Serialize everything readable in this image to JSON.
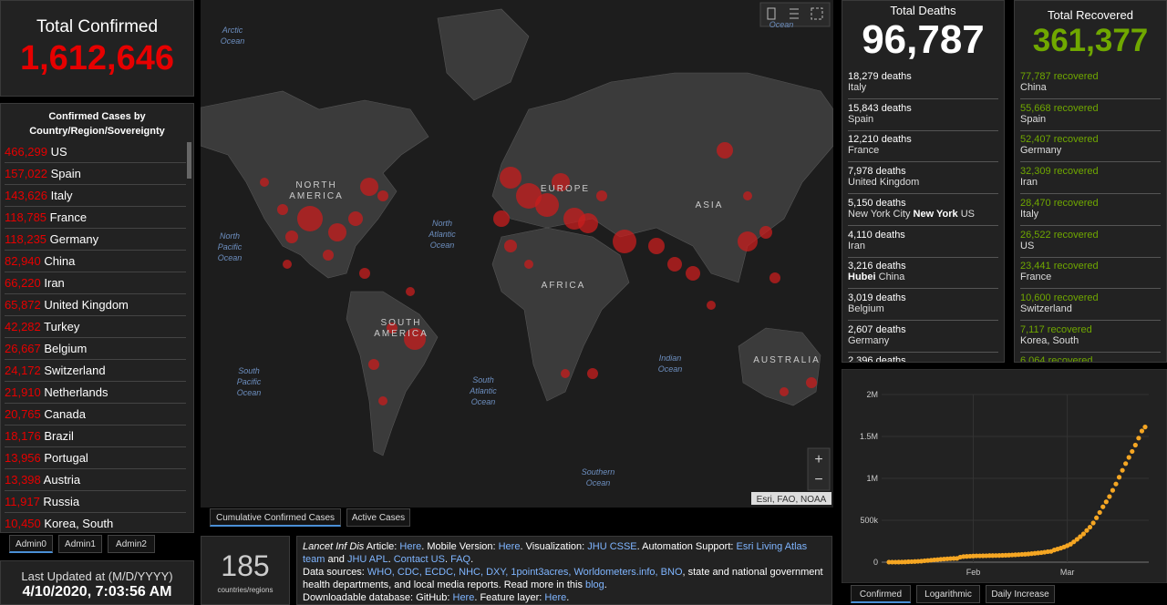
{
  "confirmed": {
    "title": "Total Confirmed",
    "total": "1,612,646"
  },
  "country_list": {
    "title": "Confirmed Cases by Country/Region/Sovereignty",
    "rows": [
      {
        "count": "466,299",
        "place": "US"
      },
      {
        "count": "157,022",
        "place": "Spain"
      },
      {
        "count": "143,626",
        "place": "Italy"
      },
      {
        "count": "118,785",
        "place": "France"
      },
      {
        "count": "118,235",
        "place": "Germany"
      },
      {
        "count": "82,940",
        "place": "China"
      },
      {
        "count": "66,220",
        "place": "Iran"
      },
      {
        "count": "65,872",
        "place": "United Kingdom"
      },
      {
        "count": "42,282",
        "place": "Turkey"
      },
      {
        "count": "26,667",
        "place": "Belgium"
      },
      {
        "count": "24,172",
        "place": "Switzerland"
      },
      {
        "count": "21,910",
        "place": "Netherlands"
      },
      {
        "count": "20,765",
        "place": "Canada"
      },
      {
        "count": "18,176",
        "place": "Brazil"
      },
      {
        "count": "13,956",
        "place": "Portugal"
      },
      {
        "count": "13,398",
        "place": "Austria"
      },
      {
        "count": "11,917",
        "place": "Russia"
      },
      {
        "count": "10,450",
        "place": "Korea, South"
      }
    ],
    "tabs": [
      "Admin0",
      "Admin1",
      "Admin2"
    ]
  },
  "updated": {
    "label": "Last Updated at (M/D/YYYY)",
    "value": "4/10/2020, 7:03:56 AM"
  },
  "map": {
    "labels": [
      [
        "Arctic",
        "Ocean"
      ],
      [
        "Ocean"
      ],
      [
        "NORTH",
        "AMERICA"
      ],
      [
        "North",
        "Pacific",
        "Ocean"
      ],
      [
        "North",
        "Atlantic",
        "Ocean"
      ],
      [
        "EUROPE"
      ],
      [
        "ASIA"
      ],
      [
        "AFRICA"
      ],
      [
        "SOUTH",
        "AMERICA"
      ],
      [
        "South",
        "Pacific",
        "Ocean"
      ],
      [
        "South",
        "Atlantic",
        "Ocean"
      ],
      [
        "Indian",
        "Ocean"
      ],
      [
        "AUSTRALIA"
      ],
      [
        "Southern",
        "Ocean"
      ]
    ],
    "attribution": "Esri, FAO, NOAA",
    "zoom_in": "+",
    "zoom_out": "−",
    "tabs": [
      "Cumulative Confirmed Cases",
      "Active Cases"
    ]
  },
  "countries": {
    "count": "185",
    "label": "countries/regions"
  },
  "info": {
    "paragraphs": [
      [
        {
          "text": "Lancet Inf Dis",
          "italic": true
        },
        {
          "text": " Article: "
        },
        {
          "text": "Here",
          "link": true
        },
        {
          "text": ". Mobile Version: "
        },
        {
          "text": "Here",
          "link": true
        },
        {
          "text": ". Visualization: "
        },
        {
          "text": "JHU CSSE",
          "link": true
        },
        {
          "text": ". Automation Support: "
        },
        {
          "text": "Esri Living Atlas team",
          "link": true
        },
        {
          "text": " and "
        },
        {
          "text": "JHU APL",
          "link": true
        },
        {
          "text": ". "
        },
        {
          "text": "Contact US",
          "link": true
        },
        {
          "text": ". "
        },
        {
          "text": "FAQ",
          "link": true
        },
        {
          "text": "."
        }
      ],
      [
        {
          "text": "Data sources: "
        },
        {
          "text": "WHO, CDC, ECDC, NHC, DXY, 1point3acres, Worldometers.info, BNO",
          "link": true
        },
        {
          "text": ", state and national government health departments, and local media reports.  Read more in this "
        },
        {
          "text": "blog",
          "link": true
        },
        {
          "text": "."
        }
      ],
      [
        {
          "text": "Downloadable database: GitHub: "
        },
        {
          "text": "Here",
          "link": true
        },
        {
          "text": ". Feature layer: "
        },
        {
          "text": "Here",
          "link": true
        },
        {
          "text": "."
        }
      ]
    ]
  },
  "deaths": {
    "title": "Total Deaths",
    "total": "96,787",
    "unit": "deaths",
    "rows": [
      {
        "count": "18,279",
        "place": [
          {
            "text": "Italy"
          }
        ]
      },
      {
        "count": "15,843",
        "place": [
          {
            "text": "Spain"
          }
        ]
      },
      {
        "count": "12,210",
        "place": [
          {
            "text": "France"
          }
        ]
      },
      {
        "count": "7,978",
        "place": [
          {
            "text": "United Kingdom"
          }
        ]
      },
      {
        "count": "5,150",
        "place": [
          {
            "text": "New York City "
          },
          {
            "text": "New York",
            "bold": true
          },
          {
            "text": " US"
          }
        ]
      },
      {
        "count": "4,110",
        "place": [
          {
            "text": "Iran"
          }
        ]
      },
      {
        "count": "3,216",
        "place": [
          {
            "text": "Hubei",
            "bold": true
          },
          {
            "text": " China"
          }
        ]
      },
      {
        "count": "3,019",
        "place": [
          {
            "text": "Belgium"
          }
        ]
      },
      {
        "count": "2,607",
        "place": [
          {
            "text": "Germany"
          }
        ]
      },
      {
        "count": "2,396"
      }
    ]
  },
  "recovered": {
    "title": "Total Recovered",
    "total": "361,377",
    "unit": "recovered",
    "rows": [
      {
        "count": "77,787",
        "place": "China"
      },
      {
        "count": "55,668",
        "place": "Spain"
      },
      {
        "count": "52,407",
        "place": "Germany"
      },
      {
        "count": "32,309",
        "place": "Iran"
      },
      {
        "count": "28,470",
        "place": "Italy"
      },
      {
        "count": "26,522",
        "place": "US"
      },
      {
        "count": "23,441",
        "place": "France"
      },
      {
        "count": "10,600",
        "place": "Switzerland"
      },
      {
        "count": "7,117",
        "place": "Korea, South"
      },
      {
        "count": "6,064"
      }
    ]
  },
  "chart_data": {
    "type": "scatter",
    "color": "#f5a623",
    "grid": true,
    "values": [
      555,
      654,
      941,
      1434,
      2118,
      2927,
      5578,
      6166,
      8234,
      9927,
      12038,
      16787,
      19881,
      23892,
      27635,
      30794,
      34391,
      37120,
      40150,
      42762,
      44802,
      45221,
      60368,
      66885,
      69030,
      71224,
      73258,
      75136,
      75639,
      76197,
      76819,
      78572,
      78958,
      79561,
      80406,
      81388,
      82746,
      84112,
      86011,
      88369,
      90306,
      92840,
      95120,
      97886,
      101801,
      105847,
      109821,
      113590,
      118620,
      125875,
      128352,
      145205,
      156101,
      167454,
      181574,
      197102,
      214821,
      242570,
      272208,
      304507,
      336953,
      378235,
      418045,
      467653,
      529591,
      593291,
      660706,
      720117,
      782365,
      857487,
      932605,
      1013466,
      1095917,
      1176060,
      1249754,
      1321481,
      1396476,
      1480202,
      1565278,
      1612646
    ],
    "xlim": [
      0,
      79
    ],
    "xticks": [
      {
        "value": 26,
        "label": "Feb"
      },
      {
        "value": 55,
        "label": "Mar"
      }
    ],
    "ylim": [
      0,
      2000000
    ],
    "yticks": [
      0,
      {
        "value": 500000,
        "label": "500k"
      },
      {
        "value": 1000000,
        "label": "1M"
      },
      {
        "value": 1500000,
        "label": "1.5M"
      },
      {
        "value": 2000000,
        "label": "2M"
      }
    ],
    "tabs": [
      "Confirmed",
      "Logarithmic",
      "Daily Increase"
    ]
  }
}
